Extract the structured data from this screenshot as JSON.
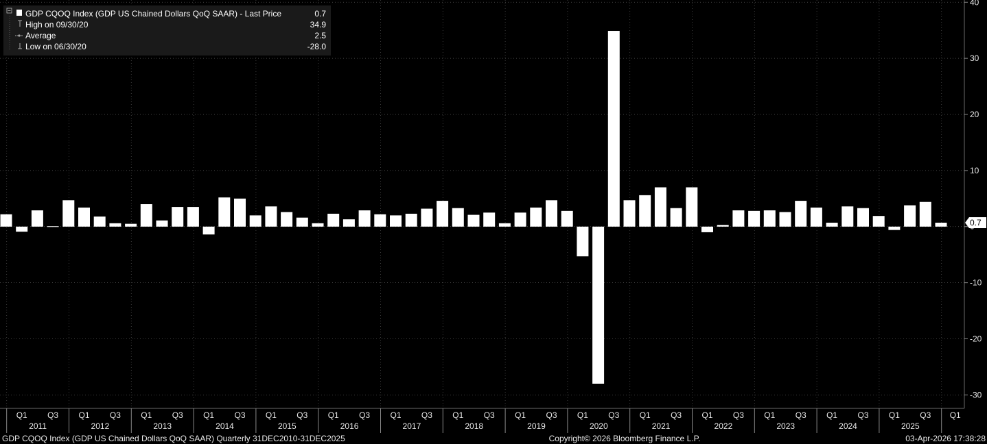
{
  "legend": {
    "title": "GDP CQOQ Index (GDP US Chained Dollars QoQ SAAR) - Last Price",
    "last_value": "0.7",
    "rows": [
      {
        "label": "High on 09/30/20",
        "value": "34.9"
      },
      {
        "label": "Average",
        "value": "2.5"
      },
      {
        "label": "Low on 06/30/20",
        "value": "-28.0"
      }
    ]
  },
  "last_price_tag": "0.7",
  "footer": {
    "left": "GDP CQOQ Index (GDP US Chained Dollars QoQ SAAR) Quarterly 31DEC2010-31DEC2025",
    "center": "Copyright© 2026 Bloomberg Finance L.P.",
    "right": "03-Apr-2026 17:38:28"
  },
  "colors": {
    "background": "#000000",
    "bar": "#ffffff",
    "grid": "#555555"
  },
  "chart_data": {
    "type": "bar",
    "y_ticks": [
      40,
      30,
      20,
      10,
      0,
      -10,
      -20,
      -30
    ],
    "ylim": [
      -32.4,
      40.4
    ],
    "years": [
      "2011",
      "2012",
      "2013",
      "2014",
      "2015",
      "2016",
      "2017",
      "2018",
      "2019",
      "2020",
      "2021",
      "2022",
      "2023",
      "2024",
      "2025"
    ],
    "quarter_labels": [
      "Q1",
      "Q3"
    ],
    "final_label": "Q1",
    "grid": "dotted",
    "categories": [
      "2010-Q4",
      "2011-Q1",
      "2011-Q2",
      "2011-Q3",
      "2011-Q4",
      "2012-Q1",
      "2012-Q2",
      "2012-Q3",
      "2012-Q4",
      "2013-Q1",
      "2013-Q2",
      "2013-Q3",
      "2013-Q4",
      "2014-Q1",
      "2014-Q2",
      "2014-Q3",
      "2014-Q4",
      "2015-Q1",
      "2015-Q2",
      "2015-Q3",
      "2015-Q4",
      "2016-Q1",
      "2016-Q2",
      "2016-Q3",
      "2016-Q4",
      "2017-Q1",
      "2017-Q2",
      "2017-Q3",
      "2017-Q4",
      "2018-Q1",
      "2018-Q2",
      "2018-Q3",
      "2018-Q4",
      "2019-Q1",
      "2019-Q2",
      "2019-Q3",
      "2019-Q4",
      "2020-Q1",
      "2020-Q2",
      "2020-Q3",
      "2020-Q4",
      "2021-Q1",
      "2021-Q2",
      "2021-Q3",
      "2021-Q4",
      "2022-Q1",
      "2022-Q2",
      "2022-Q3",
      "2022-Q4",
      "2023-Q1",
      "2023-Q2",
      "2023-Q3",
      "2023-Q4",
      "2024-Q1",
      "2024-Q2",
      "2024-Q3",
      "2024-Q4",
      "2025-Q1",
      "2025-Q2",
      "2025-Q3",
      "2025-Q4"
    ],
    "values": [
      2.2,
      -0.9,
      2.9,
      -0.1,
      4.7,
      3.4,
      1.8,
      0.6,
      0.5,
      4.0,
      1.1,
      3.5,
      3.5,
      -1.4,
      5.2,
      5.0,
      2.0,
      3.6,
      2.6,
      1.6,
      0.6,
      2.3,
      1.3,
      2.9,
      2.2,
      2.0,
      2.3,
      3.2,
      4.6,
      3.3,
      2.1,
      2.5,
      0.6,
      2.5,
      3.4,
      4.7,
      2.8,
      -5.3,
      -28.0,
      34.9,
      4.7,
      5.6,
      7.0,
      3.3,
      7.0,
      -1.0,
      0.3,
      2.9,
      2.8,
      2.9,
      2.6,
      4.6,
      3.4,
      0.7,
      3.6,
      3.3,
      1.9,
      -0.6,
      3.8,
      4.4,
      0.7
    ]
  }
}
